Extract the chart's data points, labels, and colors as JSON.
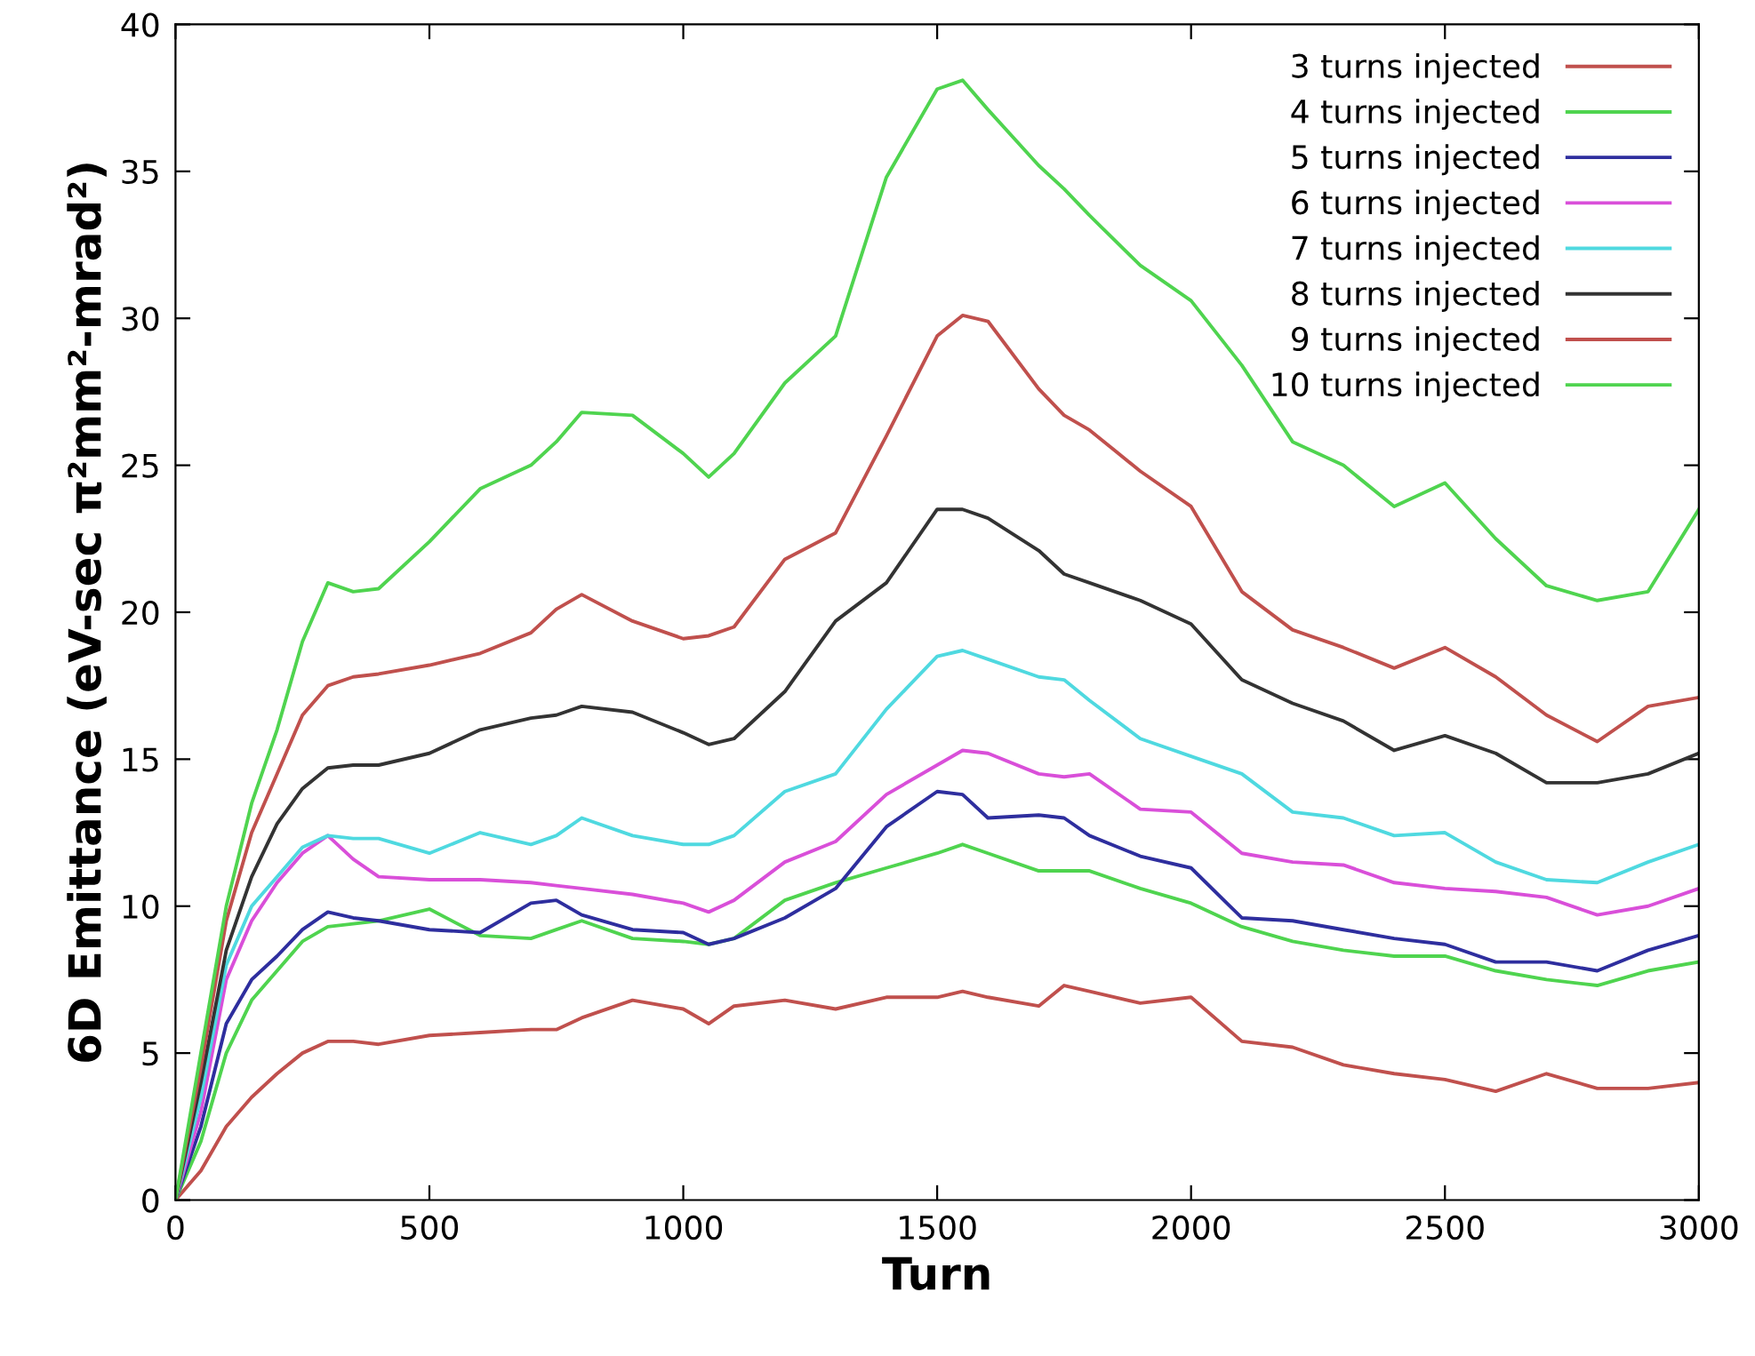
{
  "chart_data": {
    "type": "line",
    "xlabel": "Turn",
    "ylabel": "6D Emittance (eV-sec π²mm²-mrad²)",
    "x": [
      0,
      50,
      100,
      150,
      200,
      250,
      300,
      350,
      400,
      500,
      600,
      700,
      750,
      800,
      900,
      1000,
      1050,
      1100,
      1200,
      1300,
      1400,
      1500,
      1550,
      1600,
      1700,
      1750,
      1800,
      1900,
      2000,
      2100,
      2200,
      2300,
      2400,
      2500,
      2600,
      2700,
      2800,
      2900,
      3000
    ],
    "series": [
      {
        "name": "3 turns injected",
        "color": "#c0504d",
        "values": [
          0,
          1.0,
          2.5,
          3.5,
          4.3,
          5.0,
          5.4,
          5.4,
          5.3,
          5.6,
          5.7,
          5.8,
          5.8,
          6.2,
          6.8,
          6.5,
          6.0,
          6.6,
          6.8,
          6.5,
          6.9,
          6.9,
          7.1,
          6.9,
          6.6,
          7.3,
          7.1,
          6.7,
          6.9,
          5.4,
          5.2,
          4.6,
          4.3,
          4.1,
          3.7,
          4.3,
          3.8,
          3.8,
          4.0
        ]
      },
      {
        "name": "4 turns injected",
        "color": "#4fd44f",
        "values": [
          0,
          2.0,
          5.0,
          6.8,
          7.8,
          8.8,
          9.3,
          9.4,
          9.5,
          9.9,
          9.0,
          8.9,
          9.2,
          9.5,
          8.9,
          8.8,
          8.7,
          8.9,
          10.2,
          10.8,
          11.3,
          11.8,
          12.1,
          11.8,
          11.2,
          11.2,
          11.2,
          10.6,
          10.1,
          9.3,
          8.8,
          8.5,
          8.3,
          8.3,
          7.8,
          7.5,
          7.3,
          7.8,
          8.1
        ]
      },
      {
        "name": "5 turns injected",
        "color": "#2e2e9e",
        "values": [
          0,
          2.5,
          6.0,
          7.5,
          8.3,
          9.2,
          9.8,
          9.6,
          9.5,
          9.2,
          9.1,
          10.1,
          10.2,
          9.7,
          9.2,
          9.1,
          8.7,
          8.9,
          9.6,
          10.6,
          12.7,
          13.9,
          13.8,
          13.0,
          13.1,
          13.0,
          12.4,
          11.7,
          11.3,
          9.6,
          9.5,
          9.2,
          8.9,
          8.7,
          8.1,
          8.1,
          7.8,
          8.5,
          9.0
        ]
      },
      {
        "name": "6 turns injected",
        "color": "#d94fd9",
        "values": [
          0,
          3.0,
          7.5,
          9.5,
          10.8,
          11.8,
          12.4,
          11.6,
          11.0,
          10.9,
          10.9,
          10.8,
          10.7,
          10.6,
          10.4,
          10.1,
          9.8,
          10.2,
          11.5,
          12.2,
          13.8,
          14.8,
          15.3,
          15.2,
          14.5,
          14.4,
          14.5,
          13.3,
          13.2,
          11.8,
          11.5,
          11.4,
          10.8,
          10.6,
          10.5,
          10.3,
          9.7,
          10.0,
          10.6
        ]
      },
      {
        "name": "7 turns injected",
        "color": "#4fd9e0",
        "values": [
          0,
          3.5,
          8.0,
          10.0,
          11.0,
          12.0,
          12.4,
          12.3,
          12.3,
          11.8,
          12.5,
          12.1,
          12.4,
          13.0,
          12.4,
          12.1,
          12.1,
          12.4,
          13.9,
          14.5,
          16.7,
          18.5,
          18.7,
          18.4,
          17.8,
          17.7,
          17.0,
          15.7,
          15.1,
          14.5,
          13.2,
          13.0,
          12.4,
          12.5,
          11.5,
          10.9,
          10.8,
          11.5,
          12.1
        ]
      },
      {
        "name": "8 turns injected",
        "color": "#333333",
        "values": [
          0,
          4.0,
          8.5,
          11.0,
          12.8,
          14.0,
          14.7,
          14.8,
          14.8,
          15.2,
          16.0,
          16.4,
          16.5,
          16.8,
          16.6,
          15.9,
          15.5,
          15.7,
          17.3,
          19.7,
          21.0,
          23.5,
          23.5,
          23.2,
          22.1,
          21.3,
          21.0,
          20.4,
          19.6,
          17.7,
          16.9,
          16.3,
          15.3,
          15.8,
          15.2,
          14.2,
          14.2,
          14.5,
          15.2
        ]
      },
      {
        "name": "9 turns injected",
        "color": "#c0504d",
        "values": [
          0,
          4.5,
          9.5,
          12.5,
          14.5,
          16.5,
          17.5,
          17.8,
          17.9,
          18.2,
          18.6,
          19.3,
          20.1,
          20.6,
          19.7,
          19.1,
          19.2,
          19.5,
          21.8,
          22.7,
          26.0,
          29.4,
          30.1,
          29.9,
          27.6,
          26.7,
          26.2,
          24.8,
          23.6,
          20.7,
          19.4,
          18.8,
          18.1,
          18.8,
          17.8,
          16.5,
          15.6,
          16.8,
          17.1
        ]
      },
      {
        "name": "10 turns injected",
        "color": "#4fd44f",
        "values": [
          0,
          5.0,
          10.0,
          13.5,
          16.0,
          19.0,
          21.0,
          20.7,
          20.8,
          22.4,
          24.2,
          25.0,
          25.8,
          26.8,
          26.7,
          25.4,
          24.6,
          25.4,
          27.8,
          29.4,
          34.8,
          37.8,
          38.1,
          37.1,
          35.2,
          34.4,
          33.5,
          31.8,
          30.6,
          28.4,
          25.8,
          25.0,
          23.6,
          24.4,
          22.5,
          20.9,
          20.4,
          20.7,
          23.5
        ]
      }
    ],
    "xlim": [
      0,
      3000
    ],
    "xticks": [
      0,
      500,
      1000,
      1500,
      2000,
      2500,
      3000
    ],
    "ylim": [
      0,
      40
    ],
    "yticks": [
      0,
      5,
      10,
      15,
      20,
      25,
      30,
      35,
      40
    ],
    "grid": false,
    "legend": "top right",
    "marker": "none",
    "line_style": "solid"
  }
}
